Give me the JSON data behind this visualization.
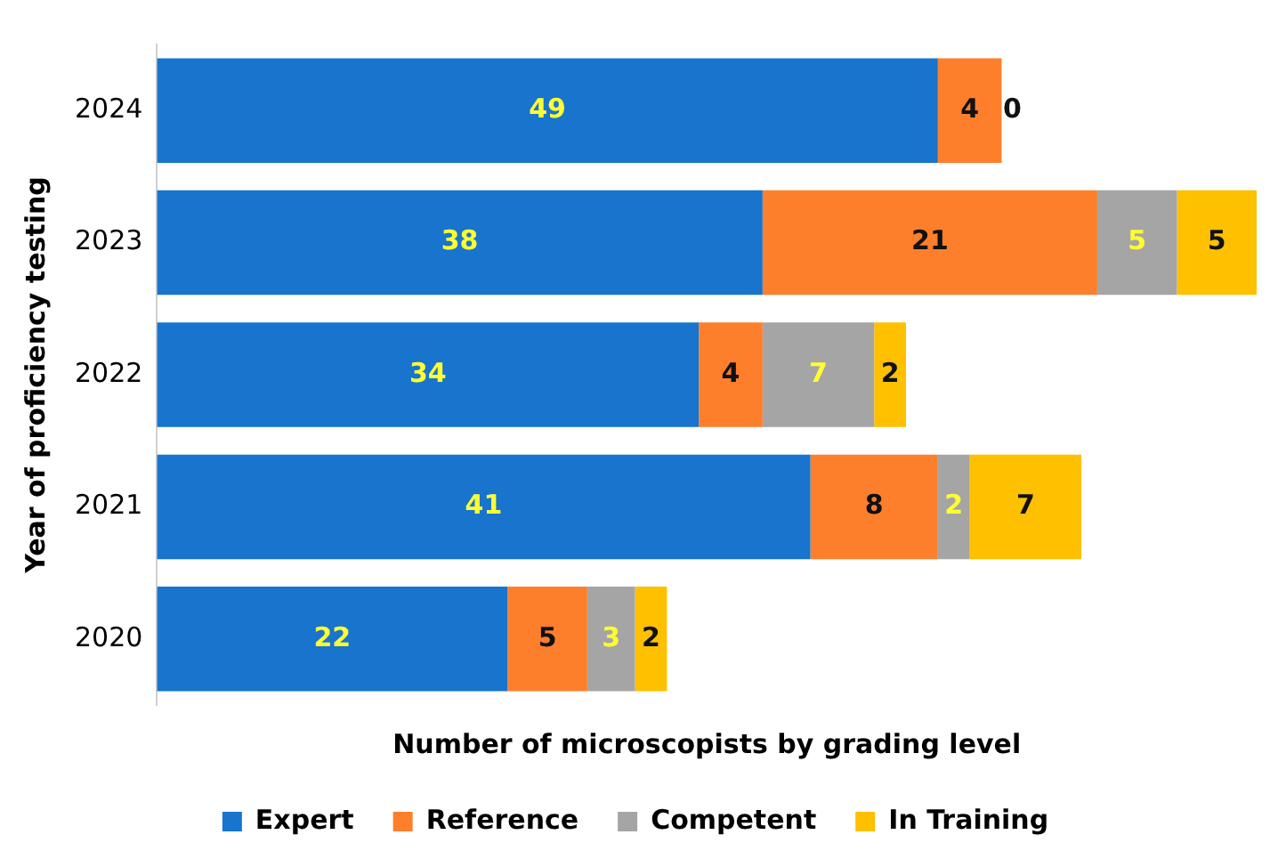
{
  "chart_data": {
    "type": "bar",
    "orientation": "horizontal",
    "stacked": true,
    "data_labels": true,
    "legend": "bottom",
    "grid": false,
    "xlabel": "Number of microscopists by grading level",
    "ylabel": "Year of proficiency testing",
    "categories": [
      "2024",
      "2023",
      "2022",
      "2021",
      "2020"
    ],
    "series": [
      {
        "name": "Expert",
        "color": "#1874cd",
        "values": [
          49,
          38,
          34,
          41,
          22
        ]
      },
      {
        "name": "Reference",
        "color": "#fd7f2c",
        "values": [
          4,
          21,
          4,
          8,
          5
        ]
      },
      {
        "name": "Competent",
        "color": "#a5a5a5",
        "values": [
          0,
          5,
          7,
          2,
          3
        ]
      },
      {
        "name": "In Training",
        "color": "#ffc000",
        "values": [
          null,
          5,
          2,
          7,
          2
        ]
      }
    ]
  }
}
